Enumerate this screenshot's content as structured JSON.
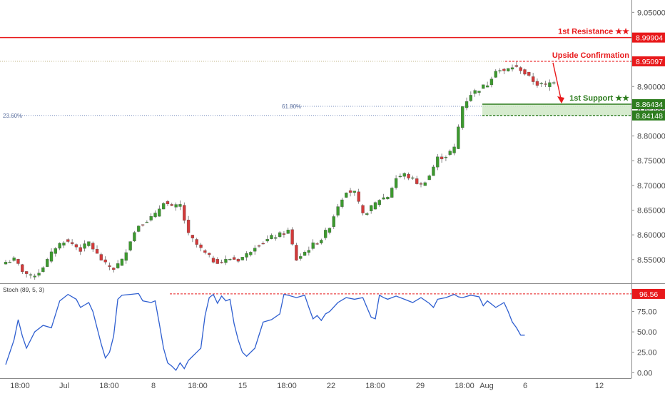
{
  "chart_data": {
    "type": "candlestick",
    "instrument": "",
    "price_axis": {
      "ylim": [
        8.505,
        9.075
      ],
      "ticks": [
        "9.05000",
        "9.00000",
        "8.95000",
        "8.90000",
        "8.85000",
        "8.80000",
        "8.75000",
        "8.70000",
        "8.65000",
        "8.60000",
        "8.55000"
      ]
    },
    "x_axis": {
      "ticks": [
        "18:00",
        "Jul",
        "18:00",
        "8",
        "18:00",
        "15",
        "18:00",
        "22",
        "18:00",
        "29",
        "18:00",
        "Aug",
        "6",
        "12"
      ]
    },
    "levels": [
      {
        "name": "1st Resistance ★★",
        "value": 8.99904,
        "label": "8.99904",
        "color": "#e8191b"
      },
      {
        "name": "Upside Confirmation",
        "value": 8.95097,
        "label": "8.95097",
        "color": "#e8191b"
      },
      {
        "name": "1st Support ★★",
        "value": 8.86434,
        "label": "8.86434",
        "color": "#2e7d1f"
      },
      {
        "name": "",
        "value": 8.84148,
        "label": "8.84148",
        "color": "#2e7d1f"
      }
    ],
    "fibonacci": [
      {
        "label": "61.80%",
        "value": 8.86
      },
      {
        "label": "23.60%",
        "value": 8.8415
      }
    ],
    "price_path": [
      [
        0,
        8.545
      ],
      [
        2,
        8.55
      ],
      [
        4,
        8.528
      ],
      [
        6,
        8.515
      ],
      [
        8,
        8.525
      ],
      [
        10,
        8.548
      ],
      [
        12,
        8.575
      ],
      [
        14,
        8.588
      ],
      [
        16,
        8.582
      ],
      [
        18,
        8.57
      ],
      [
        20,
        8.585
      ],
      [
        22,
        8.56
      ],
      [
        24,
        8.54
      ],
      [
        26,
        8.532
      ],
      [
        28,
        8.548
      ],
      [
        30,
        8.59
      ],
      [
        32,
        8.62
      ],
      [
        34,
        8.63
      ],
      [
        36,
        8.64
      ],
      [
        38,
        8.668
      ],
      [
        40,
        8.655
      ],
      [
        42,
        8.66
      ],
      [
        44,
        8.6
      ],
      [
        46,
        8.58
      ],
      [
        48,
        8.562
      ],
      [
        50,
        8.548
      ],
      [
        52,
        8.545
      ],
      [
        54,
        8.552
      ],
      [
        56,
        8.55
      ],
      [
        58,
        8.56
      ],
      [
        60,
        8.578
      ],
      [
        62,
        8.585
      ],
      [
        64,
        8.595
      ],
      [
        66,
        8.6
      ],
      [
        68,
        8.608
      ],
      [
        70,
        8.55
      ],
      [
        72,
        8.565
      ],
      [
        74,
        8.58
      ],
      [
        76,
        8.592
      ],
      [
        78,
        8.618
      ],
      [
        80,
        8.66
      ],
      [
        82,
        8.69
      ],
      [
        84,
        8.685
      ],
      [
        86,
        8.64
      ],
      [
        88,
        8.655
      ],
      [
        90,
        8.672
      ],
      [
        92,
        8.678
      ],
      [
        94,
        8.715
      ],
      [
        96,
        8.722
      ],
      [
        98,
        8.712
      ],
      [
        100,
        8.7
      ],
      [
        102,
        8.72
      ],
      [
        104,
        8.755
      ],
      [
        106,
        8.76
      ],
      [
        108,
        8.775
      ],
      [
        110,
        8.86
      ],
      [
        112,
        8.885
      ],
      [
        114,
        8.895
      ],
      [
        116,
        8.905
      ],
      [
        118,
        8.935
      ],
      [
        120,
        8.93
      ],
      [
        122,
        8.94
      ],
      [
        124,
        8.935
      ],
      [
        126,
        8.918
      ],
      [
        128,
        8.905
      ],
      [
        130,
        8.902
      ],
      [
        132,
        8.912
      ]
    ],
    "stochastic": {
      "title": "Stoch (89, 5, 3)",
      "ylim": [
        -5,
        107
      ],
      "ticks": [
        "0.00",
        "25.00",
        "50.00",
        "75.00"
      ],
      "overbought_label": "96.56",
      "overbought_value": 96.56,
      "values": [
        [
          0,
          10
        ],
        [
          2,
          40
        ],
        [
          3,
          65
        ],
        [
          4,
          45
        ],
        [
          5,
          30
        ],
        [
          7,
          50
        ],
        [
          9,
          58
        ],
        [
          11,
          55
        ],
        [
          13,
          88
        ],
        [
          15,
          96
        ],
        [
          17,
          90
        ],
        [
          18,
          80
        ],
        [
          20,
          86
        ],
        [
          21,
          75
        ],
        [
          22,
          55
        ],
        [
          23,
          35
        ],
        [
          24,
          18
        ],
        [
          25,
          25
        ],
        [
          26,
          45
        ],
        [
          27,
          90
        ],
        [
          28,
          95
        ],
        [
          30,
          96
        ],
        [
          32,
          97
        ],
        [
          33,
          88
        ],
        [
          35,
          86
        ],
        [
          36,
          88
        ],
        [
          37,
          60
        ],
        [
          38,
          30
        ],
        [
          39,
          12
        ],
        [
          40,
          8
        ],
        [
          41,
          3
        ],
        [
          42,
          12
        ],
        [
          43,
          5
        ],
        [
          44,
          15
        ],
        [
          45,
          20
        ],
        [
          46,
          25
        ],
        [
          47,
          30
        ],
        [
          48,
          70
        ],
        [
          49,
          92
        ],
        [
          50,
          96
        ],
        [
          51,
          85
        ],
        [
          52,
          94
        ],
        [
          53,
          88
        ],
        [
          54,
          90
        ],
        [
          55,
          60
        ],
        [
          56,
          40
        ],
        [
          57,
          25
        ],
        [
          58,
          20
        ],
        [
          60,
          30
        ],
        [
          62,
          62
        ],
        [
          64,
          65
        ],
        [
          66,
          72
        ],
        [
          67,
          96
        ],
        [
          68,
          95
        ],
        [
          70,
          92
        ],
        [
          72,
          95
        ],
        [
          73,
          80
        ],
        [
          74,
          66
        ],
        [
          75,
          70
        ],
        [
          76,
          64
        ],
        [
          77,
          72
        ],
        [
          78,
          75
        ],
        [
          80,
          86
        ],
        [
          82,
          92
        ],
        [
          84,
          90
        ],
        [
          86,
          92
        ],
        [
          87,
          80
        ],
        [
          88,
          68
        ],
        [
          89,
          66
        ],
        [
          90,
          95
        ],
        [
          91,
          92
        ],
        [
          92,
          90
        ],
        [
          94,
          94
        ],
        [
          96,
          90
        ],
        [
          98,
          86
        ],
        [
          100,
          92
        ],
        [
          102,
          85
        ],
        [
          103,
          80
        ],
        [
          104,
          90
        ],
        [
          106,
          92
        ],
        [
          108,
          96
        ],
        [
          109,
          93
        ],
        [
          110,
          92
        ],
        [
          112,
          95
        ],
        [
          114,
          93
        ],
        [
          115,
          82
        ],
        [
          116,
          88
        ],
        [
          118,
          80
        ],
        [
          120,
          86
        ],
        [
          121,
          75
        ],
        [
          122,
          62
        ],
        [
          123,
          55
        ],
        [
          124,
          46
        ],
        [
          125,
          46
        ]
      ]
    }
  }
}
